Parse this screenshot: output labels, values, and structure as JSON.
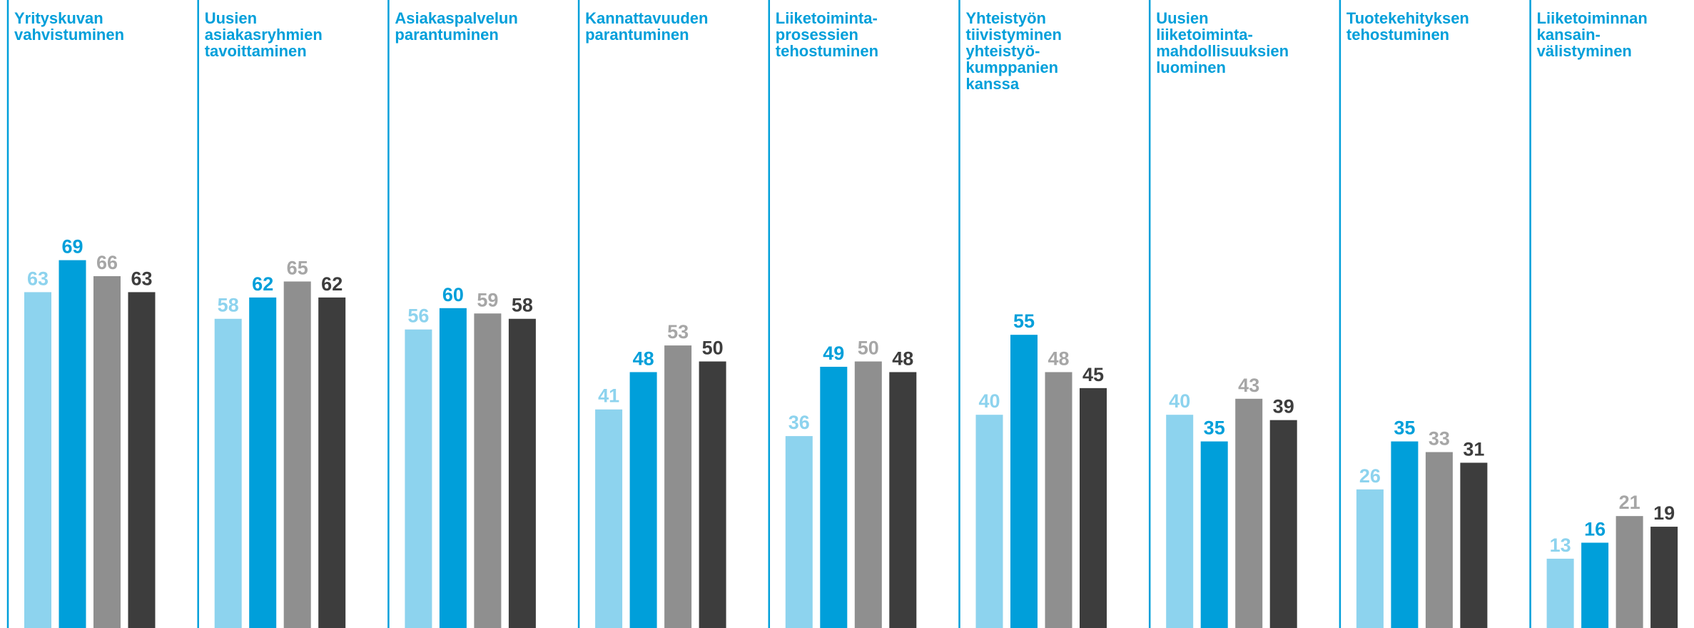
{
  "chart_data": {
    "type": "bar",
    "categories": [
      "Yrityskuvan\nvahvistuminen",
      "Uusien\nasiakasryhmien\ntavoittaminen",
      "Asiakaspalvelun\nparantuminen",
      "Kannattavuuden\nparantuminen",
      "Liiketoiminta-\nprosessien\ntehostuminen",
      "Yhteistyön\ntiivistyminen\nyhteistyö-\nkumppanien\nkanssa",
      "Uusien\nliiketoiminta-\nmahdollisuuksien\nluominen",
      "Tuotekehityksen\ntehostuminen",
      "Liiketoiminnan\nkansain-\nvälistyminen"
    ],
    "series": [
      {
        "values": [
          63,
          58,
          56,
          41,
          36,
          40,
          40,
          26,
          13
        ]
      },
      {
        "values": [
          69,
          62,
          60,
          48,
          49,
          55,
          35,
          35,
          16
        ]
      },
      {
        "values": [
          66,
          65,
          59,
          53,
          50,
          48,
          43,
          33,
          21
        ]
      },
      {
        "values": [
          63,
          62,
          58,
          50,
          48,
          45,
          39,
          31,
          19
        ]
      }
    ],
    "ylim": [
      0,
      100
    ],
    "grid": false,
    "legend": "none",
    "colors": {
      "series": [
        "#8dd3ee",
        "#009fda",
        "#8f8f8f",
        "#3d3d3d"
      ],
      "title": "#009fda",
      "divider": "#009fda",
      "labels": [
        "#8dd3ee",
        "#009fda",
        "#a6a6a6",
        "#3d3d3d"
      ]
    }
  }
}
